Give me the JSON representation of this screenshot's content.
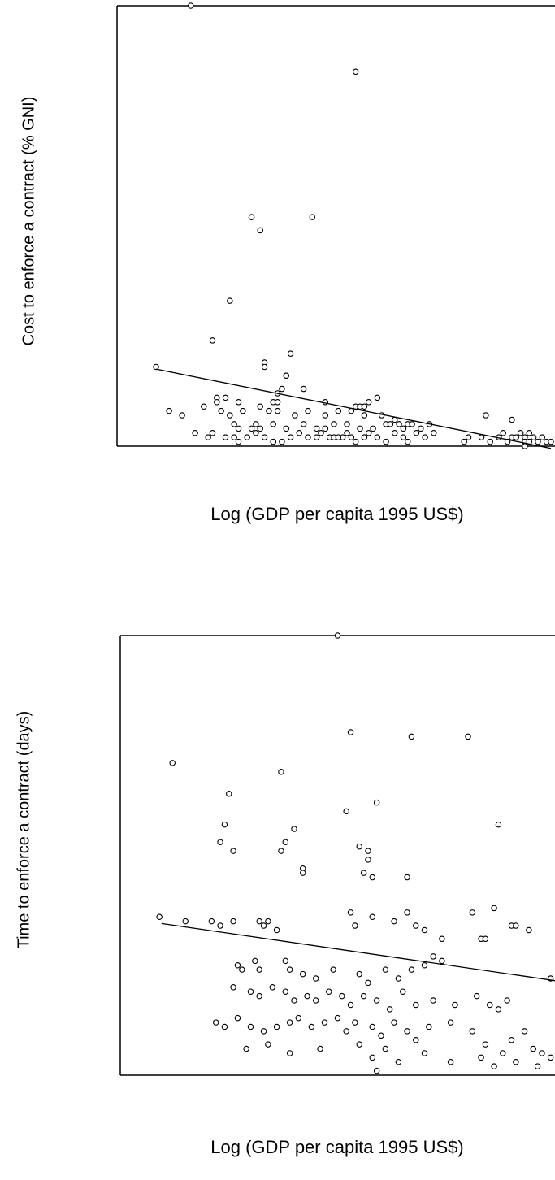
{
  "chart_data": [
    {
      "type": "scatter",
      "title": "",
      "xlabel": "Log (GDP per capita 1995 US$)",
      "ylabel": "Cost to enforce a contract (% GNI)",
      "xlim": [
        0,
        1
      ],
      "ylim": [
        0,
        1
      ],
      "grid": false,
      "legend": "none",
      "fit_line": [
        [
          0.09,
          0.175
        ],
        [
          1.0,
          -0.005
        ]
      ],
      "points": [
        [
          0.17,
          1.0
        ],
        [
          0.55,
          0.85
        ],
        [
          0.31,
          0.52
        ],
        [
          0.31,
          0.52
        ],
        [
          0.33,
          0.49
        ],
        [
          0.45,
          0.52
        ],
        [
          0.26,
          0.33
        ],
        [
          0.22,
          0.24
        ],
        [
          0.4,
          0.21
        ],
        [
          0.34,
          0.19
        ],
        [
          0.34,
          0.18
        ],
        [
          0.39,
          0.16
        ],
        [
          0.09,
          0.18
        ],
        [
          0.39,
          0.16
        ],
        [
          0.38,
          0.13
        ],
        [
          0.37,
          0.12
        ],
        [
          0.43,
          0.13
        ],
        [
          0.23,
          0.11
        ],
        [
          0.23,
          0.1
        ],
        [
          0.25,
          0.11
        ],
        [
          0.28,
          0.1
        ],
        [
          0.36,
          0.1
        ],
        [
          0.37,
          0.1
        ],
        [
          0.48,
          0.1
        ],
        [
          0.55,
          0.09
        ],
        [
          0.56,
          0.09
        ],
        [
          0.57,
          0.09
        ],
        [
          0.58,
          0.1
        ],
        [
          0.6,
          0.11
        ],
        [
          0.54,
          0.08
        ],
        [
          0.12,
          0.08
        ],
        [
          0.15,
          0.07
        ],
        [
          0.2,
          0.09
        ],
        [
          0.24,
          0.08
        ],
        [
          0.26,
          0.07
        ],
        [
          0.29,
          0.08
        ],
        [
          0.33,
          0.09
        ],
        [
          0.35,
          0.08
        ],
        [
          0.37,
          0.08
        ],
        [
          0.41,
          0.07
        ],
        [
          0.44,
          0.08
        ],
        [
          0.48,
          0.07
        ],
        [
          0.51,
          0.08
        ],
        [
          0.57,
          0.07
        ],
        [
          0.61,
          0.07
        ],
        [
          0.64,
          0.06
        ],
        [
          0.67,
          0.05
        ],
        [
          0.27,
          0.05
        ],
        [
          0.28,
          0.04
        ],
        [
          0.31,
          0.04
        ],
        [
          0.32,
          0.05
        ],
        [
          0.33,
          0.04
        ],
        [
          0.36,
          0.05
        ],
        [
          0.39,
          0.04
        ],
        [
          0.43,
          0.05
        ],
        [
          0.46,
          0.04
        ],
        [
          0.48,
          0.04
        ],
        [
          0.5,
          0.05
        ],
        [
          0.53,
          0.05
        ],
        [
          0.56,
          0.04
        ],
        [
          0.59,
          0.04
        ],
        [
          0.62,
          0.05
        ],
        [
          0.63,
          0.05
        ],
        [
          0.65,
          0.05
        ],
        [
          0.66,
          0.04
        ],
        [
          0.68,
          0.05
        ],
        [
          0.7,
          0.04
        ],
        [
          0.72,
          0.05
        ],
        [
          0.18,
          0.03
        ],
        [
          0.21,
          0.02
        ],
        [
          0.22,
          0.03
        ],
        [
          0.25,
          0.02
        ],
        [
          0.27,
          0.02
        ],
        [
          0.28,
          0.01
        ],
        [
          0.3,
          0.02
        ],
        [
          0.32,
          0.03
        ],
        [
          0.34,
          0.02
        ],
        [
          0.36,
          0.01
        ],
        [
          0.38,
          0.01
        ],
        [
          0.4,
          0.02
        ],
        [
          0.42,
          0.03
        ],
        [
          0.44,
          0.02
        ],
        [
          0.46,
          0.02
        ],
        [
          0.47,
          0.03
        ],
        [
          0.49,
          0.02
        ],
        [
          0.5,
          0.02
        ],
        [
          0.52,
          0.02
        ],
        [
          0.54,
          0.02
        ],
        [
          0.55,
          0.01
        ],
        [
          0.57,
          0.02
        ],
        [
          0.58,
          0.03
        ],
        [
          0.6,
          0.02
        ],
        [
          0.62,
          0.01
        ],
        [
          0.64,
          0.03
        ],
        [
          0.66,
          0.02
        ],
        [
          0.67,
          0.01
        ],
        [
          0.69,
          0.03
        ],
        [
          0.71,
          0.02
        ],
        [
          0.73,
          0.03
        ],
        [
          0.36,
          0.01
        ],
        [
          0.51,
          0.02
        ],
        [
          0.53,
          0.03
        ],
        [
          0.8,
          0.01
        ],
        [
          0.81,
          0.02
        ],
        [
          0.84,
          0.02
        ],
        [
          0.85,
          0.07
        ],
        [
          0.86,
          0.01
        ],
        [
          0.88,
          0.02
        ],
        [
          0.89,
          0.03
        ],
        [
          0.9,
          0.01
        ],
        [
          0.91,
          0.02
        ],
        [
          0.91,
          0.06
        ],
        [
          0.92,
          0.02
        ],
        [
          0.93,
          0.03
        ],
        [
          0.94,
          0.02
        ],
        [
          0.94,
          0.01
        ],
        [
          0.94,
          0.0
        ],
        [
          0.95,
          0.01
        ],
        [
          0.95,
          0.03
        ],
        [
          0.96,
          0.02
        ],
        [
          0.97,
          0.01
        ],
        [
          0.98,
          0.02
        ],
        [
          0.99,
          0.01
        ],
        [
          1.0,
          0.01
        ]
      ]
    },
    {
      "type": "scatter",
      "title": "",
      "xlabel": "Log (GDP per capita 1995 US$)",
      "ylabel": "Time to enforce a contract (days)",
      "xlim": [
        0,
        1
      ],
      "ylim": [
        0,
        1
      ],
      "grid": false,
      "legend": "none",
      "fit_line": [
        [
          0.095,
          0.345
        ],
        [
          1.0,
          0.215
        ]
      ],
      "points": [
        [
          0.5,
          1.0
        ],
        [
          0.53,
          0.78
        ],
        [
          0.67,
          0.77
        ],
        [
          0.8,
          0.77
        ],
        [
          0.12,
          0.71
        ],
        [
          0.37,
          0.69
        ],
        [
          0.25,
          0.64
        ],
        [
          0.59,
          0.62
        ],
        [
          0.52,
          0.6
        ],
        [
          0.87,
          0.57
        ],
        [
          0.24,
          0.57
        ],
        [
          0.4,
          0.56
        ],
        [
          0.38,
          0.53
        ],
        [
          0.23,
          0.53
        ],
        [
          0.26,
          0.51
        ],
        [
          0.37,
          0.51
        ],
        [
          0.55,
          0.52
        ],
        [
          0.57,
          0.51
        ],
        [
          0.57,
          0.49
        ],
        [
          0.42,
          0.47
        ],
        [
          0.42,
          0.46
        ],
        [
          0.56,
          0.46
        ],
        [
          0.58,
          0.45
        ],
        [
          0.66,
          0.45
        ],
        [
          0.09,
          0.36
        ],
        [
          0.15,
          0.35
        ],
        [
          0.21,
          0.35
        ],
        [
          0.23,
          0.34
        ],
        [
          0.26,
          0.35
        ],
        [
          0.32,
          0.35
        ],
        [
          0.33,
          0.34
        ],
        [
          0.34,
          0.35
        ],
        [
          0.36,
          0.33
        ],
        [
          0.53,
          0.37
        ],
        [
          0.54,
          0.34
        ],
        [
          0.58,
          0.36
        ],
        [
          0.63,
          0.35
        ],
        [
          0.66,
          0.37
        ],
        [
          0.68,
          0.34
        ],
        [
          0.7,
          0.33
        ],
        [
          0.74,
          0.31
        ],
        [
          0.81,
          0.37
        ],
        [
          0.83,
          0.31
        ],
        [
          0.84,
          0.31
        ],
        [
          0.86,
          0.38
        ],
        [
          0.9,
          0.34
        ],
        [
          0.91,
          0.34
        ],
        [
          0.94,
          0.33
        ],
        [
          0.99,
          0.22
        ],
        [
          0.27,
          0.25
        ],
        [
          0.28,
          0.24
        ],
        [
          0.31,
          0.26
        ],
        [
          0.32,
          0.24
        ],
        [
          0.38,
          0.26
        ],
        [
          0.39,
          0.24
        ],
        [
          0.42,
          0.23
        ],
        [
          0.45,
          0.22
        ],
        [
          0.49,
          0.24
        ],
        [
          0.55,
          0.23
        ],
        [
          0.57,
          0.21
        ],
        [
          0.61,
          0.24
        ],
        [
          0.64,
          0.22
        ],
        [
          0.67,
          0.24
        ],
        [
          0.7,
          0.25
        ],
        [
          0.72,
          0.27
        ],
        [
          0.74,
          0.26
        ],
        [
          0.26,
          0.2
        ],
        [
          0.3,
          0.19
        ],
        [
          0.32,
          0.18
        ],
        [
          0.35,
          0.2
        ],
        [
          0.38,
          0.19
        ],
        [
          0.4,
          0.17
        ],
        [
          0.43,
          0.18
        ],
        [
          0.45,
          0.17
        ],
        [
          0.48,
          0.19
        ],
        [
          0.51,
          0.18
        ],
        [
          0.53,
          0.16
        ],
        [
          0.56,
          0.18
        ],
        [
          0.59,
          0.17
        ],
        [
          0.62,
          0.15
        ],
        [
          0.65,
          0.19
        ],
        [
          0.68,
          0.16
        ],
        [
          0.72,
          0.17
        ],
        [
          0.77,
          0.16
        ],
        [
          0.82,
          0.18
        ],
        [
          0.85,
          0.16
        ],
        [
          0.87,
          0.15
        ],
        [
          0.89,
          0.17
        ],
        [
          0.22,
          0.12
        ],
        [
          0.24,
          0.11
        ],
        [
          0.27,
          0.13
        ],
        [
          0.3,
          0.11
        ],
        [
          0.33,
          0.1
        ],
        [
          0.36,
          0.11
        ],
        [
          0.39,
          0.12
        ],
        [
          0.41,
          0.13
        ],
        [
          0.44,
          0.11
        ],
        [
          0.47,
          0.12
        ],
        [
          0.5,
          0.13
        ],
        [
          0.52,
          0.1
        ],
        [
          0.54,
          0.12
        ],
        [
          0.58,
          0.11
        ],
        [
          0.6,
          0.09
        ],
        [
          0.63,
          0.12
        ],
        [
          0.66,
          0.1
        ],
        [
          0.68,
          0.08
        ],
        [
          0.71,
          0.11
        ],
        [
          0.76,
          0.12
        ],
        [
          0.81,
          0.1
        ],
        [
          0.84,
          0.07
        ],
        [
          0.88,
          0.05
        ],
        [
          0.9,
          0.08
        ],
        [
          0.93,
          0.1
        ],
        [
          0.95,
          0.06
        ],
        [
          0.97,
          0.05
        ],
        [
          0.99,
          0.04
        ],
        [
          0.29,
          0.06
        ],
        [
          0.34,
          0.07
        ],
        [
          0.39,
          0.05
        ],
        [
          0.46,
          0.06
        ],
        [
          0.55,
          0.07
        ],
        [
          0.58,
          0.04
        ],
        [
          0.61,
          0.06
        ],
        [
          0.64,
          0.03
        ],
        [
          0.7,
          0.05
        ],
        [
          0.76,
          0.03
        ],
        [
          0.83,
          0.04
        ],
        [
          0.86,
          0.02
        ],
        [
          0.91,
          0.03
        ],
        [
          0.96,
          0.02
        ],
        [
          0.59,
          0.01
        ]
      ]
    }
  ]
}
